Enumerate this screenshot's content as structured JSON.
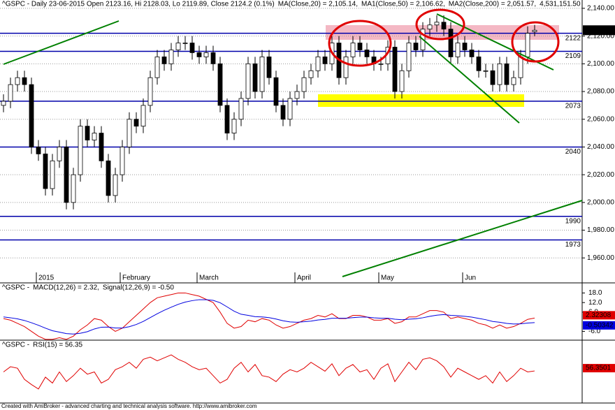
{
  "header": {
    "price_info": "^GSPC - Daily 23-06-2015 Open 2123.16, Hi 2128.03, Lo 2119.89, Close 2124.2 (0.1%)",
    "ma20": "MA(Close,20) = 2,105.14,",
    "ma50": "MA1(Close,50) = 2,106.62,",
    "ma200": "MA2(Close,200) = 2,051.57,",
    "volume": "4,531,151.50"
  },
  "footer": "Created with AmiBroker - advanced charting and technical analysis software. http://www.amibroker.com",
  "chart_data": [
    {
      "type": "candlestick",
      "up_color": "#ffffff",
      "down_color": "#000000",
      "categories": [
        null,
        null,
        null,
        null,
        null,
        "2015",
        null,
        null,
        null,
        null,
        null,
        null,
        null,
        null,
        null,
        null,
        null,
        "February",
        null,
        null,
        null,
        null,
        null,
        null,
        null,
        null,
        null,
        null,
        "March",
        null,
        null,
        null,
        null,
        null,
        null,
        null,
        null,
        null,
        null,
        null,
        null,
        null,
        "April",
        null,
        null,
        null,
        null,
        null,
        null,
        null,
        null,
        null,
        null,
        null,
        "May",
        null,
        null,
        null,
        null,
        null,
        null,
        null,
        null,
        null,
        null,
        null,
        "Jun",
        null,
        null,
        null,
        null,
        null,
        null,
        null,
        null,
        null,
        null
      ],
      "open": [
        2070,
        2073,
        2085,
        2090,
        2085,
        2040,
        2035,
        2010,
        2030,
        2040,
        2000,
        2020,
        2055,
        2045,
        2050,
        2030,
        2005,
        2020,
        2040,
        2060,
        2055,
        2070,
        2090,
        2105,
        2100,
        2110,
        2115,
        2115,
        2108,
        2105,
        2108,
        2100,
        2070,
        2050,
        2060,
        2075,
        2100,
        2080,
        2105,
        2090,
        2070,
        2060,
        2075,
        2080,
        2090,
        2095,
        2105,
        2100,
        2115,
        2090,
        2105,
        2115,
        2110,
        2105,
        2100,
        2100,
        2112,
        2080,
        2095,
        2115,
        2110,
        2125,
        2128,
        2130,
        2125,
        2105,
        2115,
        2110,
        2105,
        2095,
        2095,
        2085,
        2100,
        2085,
        2090,
        2105,
        2123.16
      ],
      "high": [
        2078,
        2090,
        2095,
        2095,
        2090,
        2045,
        2040,
        2035,
        2045,
        2045,
        2025,
        2060,
        2060,
        2055,
        2055,
        2035,
        2025,
        2045,
        2065,
        2065,
        2075,
        2095,
        2110,
        2110,
        2115,
        2120,
        2120,
        2120,
        2113,
        2113,
        2113,
        2105,
        2075,
        2065,
        2080,
        2105,
        2105,
        2110,
        2110,
        2095,
        2075,
        2080,
        2085,
        2095,
        2100,
        2110,
        2110,
        2120,
        2120,
        2110,
        2120,
        2120,
        2115,
        2110,
        2105,
        2117,
        2117,
        2100,
        2120,
        2120,
        2130,
        2133,
        2135,
        2135,
        2130,
        2120,
        2120,
        2115,
        2110,
        2100,
        2100,
        2105,
        2105,
        2095,
        2110,
        2127,
        2128.03
      ],
      "low": [
        2065,
        2068,
        2080,
        2080,
        2035,
        2030,
        2005,
        2005,
        2025,
        1995,
        1995,
        2015,
        2040,
        2040,
        2025,
        2000,
        2000,
        2015,
        2035,
        2050,
        2050,
        2065,
        2085,
        2095,
        2095,
        2105,
        2110,
        2103,
        2100,
        2100,
        2095,
        2065,
        2045,
        2045,
        2055,
        2070,
        2075,
        2075,
        2085,
        2065,
        2055,
        2055,
        2070,
        2075,
        2085,
        2090,
        2095,
        2095,
        2085,
        2085,
        2100,
        2105,
        2100,
        2095,
        2095,
        2095,
        2075,
        2075,
        2090,
        2105,
        2105,
        2120,
        2123,
        2120,
        2100,
        2100,
        2105,
        2100,
        2090,
        2090,
        2080,
        2080,
        2080,
        2080,
        2085,
        2100,
        2119.89
      ],
      "close": [
        2073,
        2085,
        2090,
        2085,
        2040,
        2035,
        2010,
        2030,
        2040,
        2000,
        2020,
        2055,
        2045,
        2050,
        2030,
        2005,
        2020,
        2040,
        2060,
        2055,
        2070,
        2090,
        2105,
        2100,
        2110,
        2115,
        2115,
        2108,
        2105,
        2108,
        2100,
        2070,
        2050,
        2060,
        2075,
        2100,
        2080,
        2105,
        2090,
        2070,
        2060,
        2075,
        2080,
        2090,
        2095,
        2105,
        2100,
        2115,
        2090,
        2105,
        2115,
        2110,
        2105,
        2100,
        2100,
        2112,
        2080,
        2095,
        2115,
        2110,
        2125,
        2128,
        2130,
        2125,
        2105,
        2115,
        2110,
        2105,
        2095,
        2095,
        2085,
        2100,
        2085,
        2090,
        2105,
        2122,
        2124.2
      ],
      "last_close_label": "2,124.2",
      "levels": [
        2122,
        2109,
        2073,
        2040,
        1990,
        1973
      ],
      "level_color": "#0000aa",
      "ylim": [
        1942,
        2146
      ],
      "yticks": [
        {
          "value": 2140,
          "label": "2,140.00"
        },
        {
          "value": 2120,
          "label": "2,120.00"
        },
        {
          "value": 2100,
          "label": "2,100.00"
        },
        {
          "value": 2080,
          "label": "2,080.00"
        },
        {
          "value": 2060,
          "label": "2,060.00"
        },
        {
          "value": 2040,
          "label": "2,040.00"
        },
        {
          "value": 2020,
          "label": "2,020.00"
        },
        {
          "value": 2000,
          "label": "2,000.00"
        },
        {
          "value": 1980,
          "label": "1,980.00"
        },
        {
          "value": 1960,
          "label": "1,960.00"
        }
      ],
      "grid": true
    },
    {
      "type": "line",
      "title_symbol": "^GSPC - ",
      "series": [
        {
          "name": "MACD(12,26) = 2.32,",
          "color": "#e00000",
          "values": [
            2,
            1,
            -1,
            -3,
            -6,
            -9,
            -11,
            -11,
            -10,
            -11,
            -9,
            -5,
            -2,
            2,
            1,
            -3,
            -6,
            -4,
            0,
            4,
            8,
            12,
            15,
            16,
            17,
            18,
            18,
            17,
            16,
            14,
            12,
            6,
            -1,
            -4,
            -3,
            1,
            0,
            2,
            1,
            -2,
            -4,
            -3,
            -1,
            1,
            2,
            4,
            3,
            5,
            2,
            2,
            4,
            4,
            3,
            1,
            1,
            2,
            -1,
            0,
            3,
            3,
            5,
            7,
            7,
            6,
            2,
            3,
            2,
            1,
            -1,
            -2,
            -4,
            -2,
            -4,
            -3,
            -1,
            1.5,
            2.32308
          ]
        },
        {
          "name": "Signal(12,26,9) = -0.50",
          "color": "#0000e0",
          "values": [
            3,
            2.5,
            1.8,
            0.8,
            -0.6,
            -2.2,
            -4,
            -5.6,
            -6.5,
            -7.4,
            -7.7,
            -7.2,
            -6.2,
            -4.5,
            -3.4,
            -3.3,
            -3.9,
            -3.9,
            -3.1,
            -1.7,
            0.2,
            2.6,
            5,
            7.2,
            9.1,
            10.9,
            12.3,
            13.2,
            13.8,
            13.8,
            13.4,
            11.9,
            9.3,
            6.6,
            4.7,
            4,
            3.2,
            3,
            2.6,
            1.7,
            0.6,
            -0.1,
            -0.3,
            0,
            0.4,
            1.1,
            1.5,
            2.2,
            2.2,
            2.2,
            2.6,
            2.9,
            2.9,
            2.5,
            2.2,
            2.2,
            1.6,
            1.3,
            1.6,
            1.9,
            2.5,
            3.4,
            4.1,
            4.5,
            4,
            3.8,
            3.4,
            2.9,
            2.1,
            1.3,
            0.2,
            -0.3,
            -1,
            -1.4,
            -1.3,
            -0.8,
            -0.50342
          ]
        }
      ],
      "ylim": [
        -11.5,
        23
      ],
      "yticks": [
        {
          "value": 18,
          "label": "18.0"
        },
        {
          "value": 12,
          "label": "12.0"
        },
        {
          "value": 6,
          "label": "6.0"
        },
        {
          "value": -6,
          "label": "-6.0"
        }
      ]
    },
    {
      "type": "line",
      "title_symbol": "^GSPC - ",
      "series": [
        {
          "name": "RSI(15) = 56.35",
          "color": "#e00000",
          "values": [
            55,
            62,
            60,
            45,
            38,
            32,
            48,
            40,
            55,
            42,
            50,
            60,
            52,
            55,
            40,
            45,
            58,
            62,
            68,
            60,
            72,
            75,
            70,
            74,
            78,
            72,
            68,
            62,
            58,
            60,
            50,
            40,
            45,
            60,
            68,
            55,
            65,
            50,
            48,
            42,
            52,
            58,
            55,
            60,
            68,
            62,
            56,
            66,
            50,
            60,
            65,
            55,
            58,
            45,
            60,
            66,
            42,
            55,
            68,
            58,
            72,
            74,
            70,
            62,
            48,
            60,
            55,
            50,
            45,
            50,
            40,
            55,
            42,
            50,
            60,
            55,
            56.3501
          ]
        }
      ],
      "ylim": [
        15,
        95
      ]
    }
  ]
}
